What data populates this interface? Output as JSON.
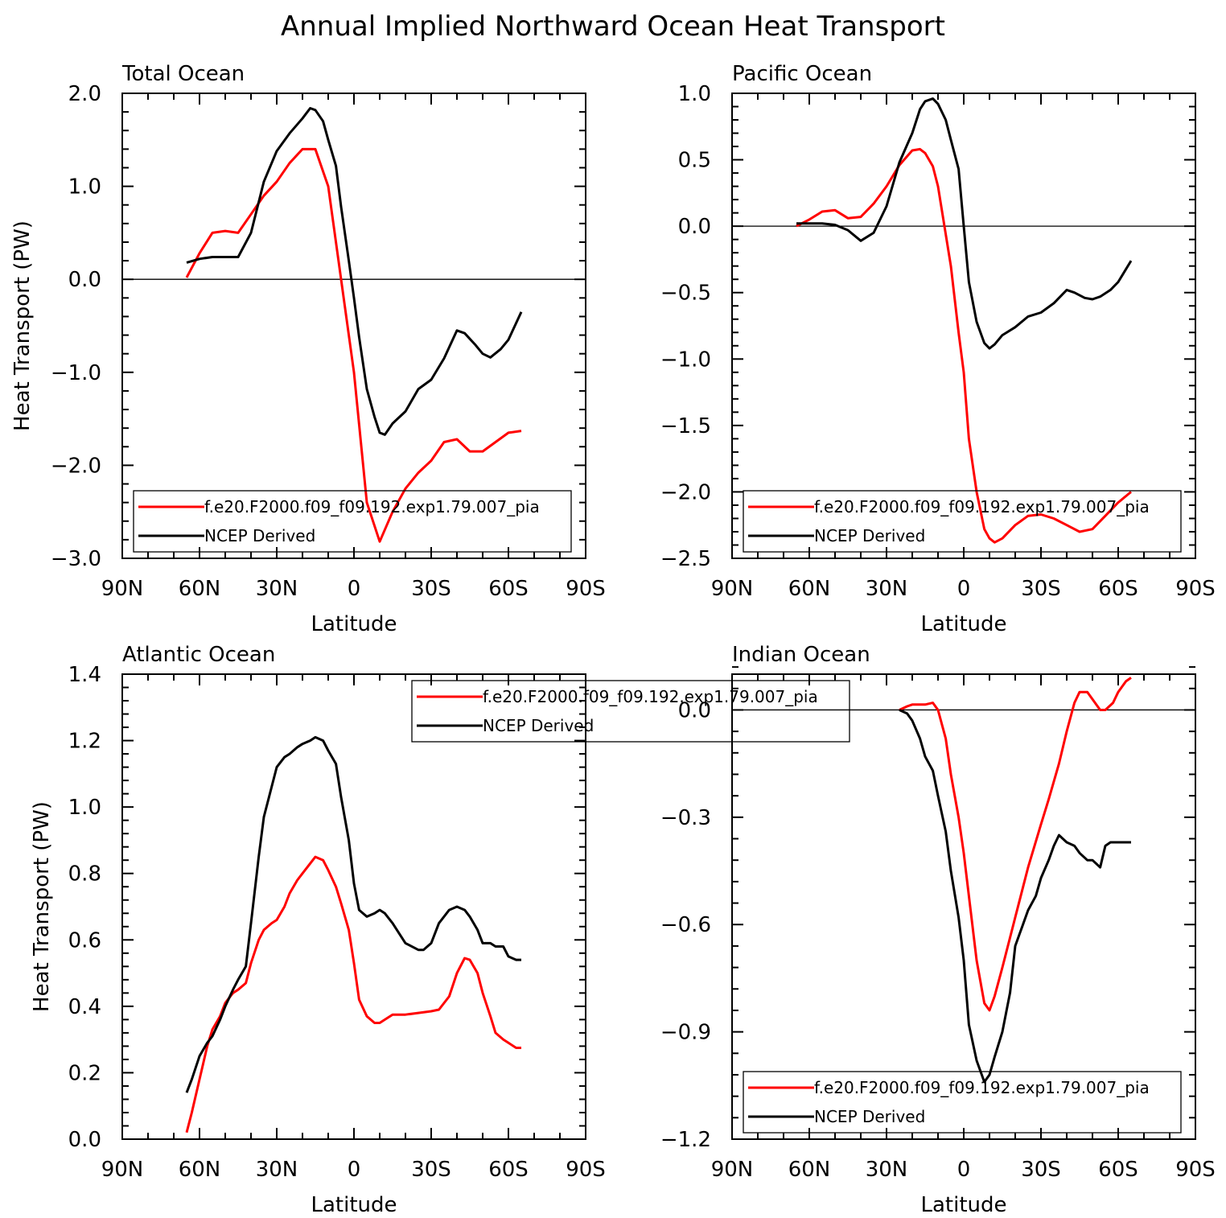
{
  "title": "Annual Implied Northward Ocean Heat Transport",
  "colors": {
    "model": "#ff0000",
    "ncep": "#000000",
    "axis": "#000000",
    "background": "#ffffff"
  },
  "chart_data": [
    {
      "type": "line",
      "panel": "Total Ocean",
      "title": "Total Ocean",
      "xlabel": "Latitude",
      "ylabel": "Heat Transport (PW)",
      "xlim": [
        90,
        -90
      ],
      "ylim": [
        -3.0,
        2.0
      ],
      "xticks": [
        90,
        60,
        30,
        0,
        -30,
        -60,
        -90
      ],
      "xtick_labels": [
        "90N",
        "60N",
        "30N",
        "0",
        "30S",
        "60S",
        "90S"
      ],
      "yticks": [
        2.0,
        1.0,
        0.0,
        -1.0,
        -2.0,
        -3.0
      ],
      "ytick_labels": [
        "2.0",
        "1.0",
        "0.0",
        "−1.0",
        "−2.0",
        "−3.0"
      ],
      "y_minor_step": 0.2,
      "x_minor_step": 10,
      "zero_line": true,
      "legend_position": "bottom-left",
      "series": [
        {
          "name": "f.e20.F2000.f09_f09.192.exp1.79.007_pia",
          "color": "#ff0000",
          "x": [
            65,
            60,
            55,
            50,
            45,
            40,
            35,
            30,
            25,
            20,
            15,
            10,
            5,
            0,
            -5,
            -10,
            -15,
            -20,
            -25,
            -30,
            -35,
            -40,
            -45,
            -50,
            -55,
            -60,
            -65
          ],
          "y": [
            0.02,
            0.28,
            0.5,
            0.52,
            0.5,
            0.7,
            0.9,
            1.05,
            1.25,
            1.4,
            1.4,
            1.0,
            0.0,
            -1.0,
            -2.4,
            -2.82,
            -2.5,
            -2.25,
            -2.08,
            -1.95,
            -1.75,
            -1.72,
            -1.85,
            -1.85,
            -1.75,
            -1.65,
            -1.63
          ]
        },
        {
          "name": "NCEP Derived",
          "color": "#000000",
          "x": [
            65,
            60,
            55,
            50,
            45,
            40,
            35,
            30,
            25,
            20,
            17,
            15,
            12,
            10,
            7,
            5,
            2,
            0,
            -2,
            -5,
            -8,
            -10,
            -12,
            -15,
            -20,
            -25,
            -30,
            -35,
            -40,
            -43,
            -47,
            -50,
            -53,
            -57,
            -60,
            -65
          ],
          "y": [
            0.18,
            0.22,
            0.24,
            0.24,
            0.24,
            0.5,
            1.05,
            1.38,
            1.57,
            1.73,
            1.84,
            1.82,
            1.7,
            1.5,
            1.22,
            0.78,
            0.2,
            -0.2,
            -0.62,
            -1.18,
            -1.48,
            -1.65,
            -1.67,
            -1.55,
            -1.42,
            -1.18,
            -1.08,
            -0.85,
            -0.55,
            -0.58,
            -0.7,
            -0.8,
            -0.84,
            -0.75,
            -0.65,
            -0.35
          ]
        }
      ]
    },
    {
      "type": "line",
      "panel": "Pacific Ocean",
      "title": "Pacific Ocean",
      "xlabel": "Latitude",
      "ylabel": "",
      "xlim": [
        90,
        -90
      ],
      "ylim": [
        -2.5,
        1.0
      ],
      "xticks": [
        90,
        60,
        30,
        0,
        -30,
        -60,
        -90
      ],
      "xtick_labels": [
        "90N",
        "60N",
        "30N",
        "0",
        "30S",
        "60S",
        "90S"
      ],
      "yticks": [
        1.0,
        0.5,
        0.0,
        -0.5,
        -1.0,
        -1.5,
        -2.0,
        -2.5
      ],
      "ytick_labels": [
        "1.0",
        "0.5",
        "0.0",
        "−0.5",
        "−1.0",
        "−1.5",
        "−2.0",
        "−2.5"
      ],
      "y_minor_step": 0.1,
      "x_minor_step": 10,
      "zero_line": true,
      "legend_position": "bottom-left",
      "series": [
        {
          "name": "f.e20.F2000.f09_f09.192.exp1.79.007_pia",
          "color": "#ff0000",
          "x": [
            65,
            60,
            55,
            50,
            45,
            40,
            35,
            30,
            25,
            20,
            17,
            15,
            12,
            10,
            5,
            2,
            0,
            -2,
            -5,
            -8,
            -10,
            -12,
            -15,
            -20,
            -25,
            -30,
            -35,
            -40,
            -45,
            -50,
            -55,
            -60,
            -65
          ],
          "y": [
            0.0,
            0.05,
            0.11,
            0.12,
            0.06,
            0.07,
            0.17,
            0.3,
            0.46,
            0.57,
            0.58,
            0.55,
            0.45,
            0.3,
            -0.3,
            -0.8,
            -1.1,
            -1.6,
            -2.0,
            -2.28,
            -2.35,
            -2.38,
            -2.35,
            -2.25,
            -2.18,
            -2.17,
            -2.2,
            -2.25,
            -2.3,
            -2.28,
            -2.18,
            -2.08,
            -2.0
          ]
        },
        {
          "name": "NCEP Derived",
          "color": "#000000",
          "x": [
            65,
            60,
            55,
            50,
            45,
            40,
            35,
            30,
            25,
            20,
            17,
            15,
            12,
            10,
            7,
            5,
            2,
            0,
            -2,
            -5,
            -8,
            -10,
            -12,
            -15,
            -20,
            -25,
            -30,
            -35,
            -40,
            -43,
            -47,
            -50,
            -53,
            -57,
            -60,
            -65
          ],
          "y": [
            0.02,
            0.02,
            0.02,
            0.01,
            -0.03,
            -0.11,
            -0.05,
            0.15,
            0.48,
            0.7,
            0.88,
            0.94,
            0.96,
            0.92,
            0.8,
            0.65,
            0.43,
            0.0,
            -0.42,
            -0.72,
            -0.88,
            -0.92,
            -0.89,
            -0.82,
            -0.76,
            -0.68,
            -0.65,
            -0.58,
            -0.48,
            -0.5,
            -0.54,
            -0.55,
            -0.53,
            -0.48,
            -0.42,
            -0.26
          ]
        }
      ]
    },
    {
      "type": "line",
      "panel": "Atlantic Ocean",
      "title": "Atlantic Ocean",
      "xlabel": "Latitude",
      "ylabel": "Heat Transport (PW)",
      "xlim": [
        90,
        -90
      ],
      "ylim": [
        0.0,
        1.4
      ],
      "xticks": [
        90,
        60,
        30,
        0,
        -30,
        -60,
        -90
      ],
      "xtick_labels": [
        "90N",
        "60N",
        "30N",
        "0",
        "30S",
        "60S",
        "90S"
      ],
      "yticks": [
        1.4,
        1.2,
        1.0,
        0.8,
        0.6,
        0.4,
        0.2,
        0.0
      ],
      "ytick_labels": [
        "1.4",
        "1.2",
        "1.0",
        "0.8",
        "0.6",
        "0.4",
        "0.2",
        "0.0"
      ],
      "y_minor_step": 0.04,
      "x_minor_step": 10,
      "zero_line": false,
      "legend_position": "top-center",
      "series": [
        {
          "name": "f.e20.F2000.f09_f09.192.exp1.79.007_pia",
          "color": "#ff0000",
          "x": [
            65,
            63,
            60,
            57,
            55,
            52,
            50,
            47,
            45,
            42,
            40,
            37,
            35,
            32,
            30,
            27,
            25,
            22,
            20,
            17,
            15,
            12,
            10,
            7,
            5,
            2,
            0,
            -2,
            -5,
            -8,
            -10,
            -12,
            -15,
            -20,
            -25,
            -30,
            -33,
            -37,
            -40,
            -43,
            -45,
            -48,
            -50,
            -53,
            -55,
            -58,
            -60,
            -63,
            -65
          ],
          "y": [
            0.02,
            0.08,
            0.18,
            0.28,
            0.33,
            0.37,
            0.41,
            0.44,
            0.45,
            0.47,
            0.53,
            0.6,
            0.63,
            0.65,
            0.66,
            0.7,
            0.74,
            0.78,
            0.8,
            0.83,
            0.85,
            0.84,
            0.81,
            0.76,
            0.71,
            0.63,
            0.53,
            0.42,
            0.37,
            0.35,
            0.35,
            0.36,
            0.375,
            0.375,
            0.38,
            0.385,
            0.39,
            0.43,
            0.5,
            0.545,
            0.54,
            0.5,
            0.44,
            0.37,
            0.32,
            0.3,
            0.29,
            0.275,
            0.275
          ]
        },
        {
          "name": "NCEP Derived",
          "color": "#000000",
          "x": [
            65,
            63,
            60,
            57,
            55,
            52,
            50,
            47,
            45,
            42,
            40,
            37,
            35,
            32,
            30,
            27,
            25,
            22,
            20,
            17,
            15,
            12,
            10,
            7,
            5,
            2,
            0,
            -2,
            -5,
            -8,
            -10,
            -12,
            -15,
            -20,
            -25,
            -27,
            -30,
            -33,
            -37,
            -40,
            -43,
            -45,
            -48,
            -50,
            -53,
            -55,
            -58,
            -60,
            -63,
            -65
          ],
          "y": [
            0.14,
            0.18,
            0.25,
            0.29,
            0.31,
            0.36,
            0.4,
            0.45,
            0.48,
            0.52,
            0.65,
            0.85,
            0.97,
            1.06,
            1.12,
            1.15,
            1.16,
            1.18,
            1.19,
            1.2,
            1.21,
            1.2,
            1.17,
            1.13,
            1.03,
            0.9,
            0.77,
            0.69,
            0.67,
            0.68,
            0.69,
            0.68,
            0.65,
            0.59,
            0.57,
            0.57,
            0.59,
            0.65,
            0.69,
            0.7,
            0.69,
            0.67,
            0.63,
            0.59,
            0.59,
            0.58,
            0.58,
            0.55,
            0.54,
            0.54
          ]
        }
      ]
    },
    {
      "type": "line",
      "panel": "Indian Ocean",
      "title": "Indian Ocean",
      "xlabel": "Latitude",
      "ylabel": "",
      "xlim": [
        90,
        -90
      ],
      "ylim": [
        -1.2,
        0.1
      ],
      "xticks": [
        90,
        60,
        30,
        0,
        -30,
        -60,
        -90
      ],
      "xtick_labels": [
        "90N",
        "60N",
        "30N",
        "0",
        "30S",
        "60S",
        "90S"
      ],
      "yticks": [
        0.0,
        -0.3,
        -0.6,
        -0.9,
        -1.2
      ],
      "ytick_labels": [
        "0.0",
        "−0.3",
        "−0.6",
        "−0.9",
        "−1.2"
      ],
      "y_minor_step": 0.06,
      "x_minor_step": 10,
      "zero_line": true,
      "legend_position": "bottom-left",
      "series": [
        {
          "name": "f.e20.F2000.f09_f09.192.exp1.79.007_pia",
          "color": "#ff0000",
          "x": [
            25,
            22,
            20,
            17,
            15,
            12,
            10,
            7,
            5,
            2,
            0,
            -2,
            -5,
            -8,
            -10,
            -12,
            -15,
            -20,
            -25,
            -30,
            -33,
            -37,
            -40,
            -43,
            -45,
            -48,
            -50,
            -53,
            -55,
            -58,
            -60,
            -63,
            -65
          ],
          "y": [
            0.0,
            0.01,
            0.015,
            0.015,
            0.015,
            0.02,
            0.0,
            -0.08,
            -0.18,
            -0.3,
            -0.4,
            -0.52,
            -0.7,
            -0.82,
            -0.84,
            -0.8,
            -0.72,
            -0.58,
            -0.44,
            -0.32,
            -0.25,
            -0.15,
            -0.06,
            0.02,
            0.05,
            0.05,
            0.03,
            0.0,
            0.0,
            0.02,
            0.05,
            0.08,
            0.09
          ]
        },
        {
          "name": "NCEP Derived",
          "color": "#000000",
          "x": [
            25,
            22,
            20,
            17,
            15,
            12,
            10,
            7,
            5,
            2,
            0,
            -2,
            -5,
            -8,
            -10,
            -12,
            -15,
            -18,
            -20,
            -23,
            -25,
            -28,
            -30,
            -33,
            -35,
            -37,
            -40,
            -43,
            -45,
            -48,
            -50,
            -53,
            -55,
            -57,
            -60,
            -63,
            -65
          ],
          "y": [
            0.0,
            -0.01,
            -0.03,
            -0.08,
            -0.13,
            -0.17,
            -0.24,
            -0.34,
            -0.45,
            -0.58,
            -0.7,
            -0.88,
            -0.98,
            -1.04,
            -1.02,
            -0.97,
            -0.9,
            -0.79,
            -0.66,
            -0.6,
            -0.56,
            -0.52,
            -0.47,
            -0.42,
            -0.38,
            -0.35,
            -0.37,
            -0.38,
            -0.4,
            -0.42,
            -0.42,
            -0.44,
            -0.38,
            -0.37,
            -0.37,
            -0.37,
            -0.37
          ]
        }
      ]
    }
  ]
}
